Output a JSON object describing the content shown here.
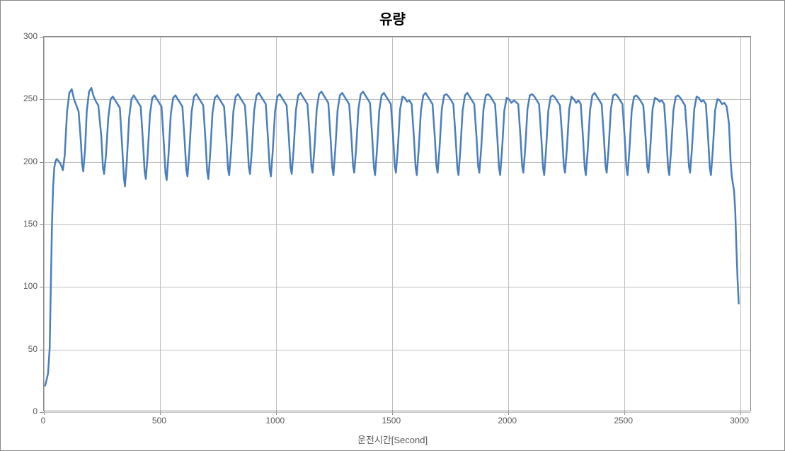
{
  "chart": {
    "type": "line",
    "title": "유량",
    "title_fontsize": 20,
    "title_fontweight": "bold",
    "title_color": "#000000",
    "xlabel": "운전시간[Second]",
    "label_fontsize": 13,
    "label_color": "#595959",
    "tick_fontsize": 12,
    "tick_color": "#595959",
    "xlim": [
      0,
      3050
    ],
    "ylim": [
      0,
      300
    ],
    "xtick_step": 500,
    "xticks": [
      0,
      500,
      1000,
      1500,
      2000,
      2500,
      3000
    ],
    "ytick_step": 50,
    "yticks": [
      0,
      50,
      100,
      150,
      200,
      250,
      300
    ],
    "background_color": "#ffffff",
    "grid_color": "#bfbfbf",
    "border_color": "#888888",
    "line_color": "#4a7ebb",
    "line_width": 2.5,
    "grid": true,
    "series": [
      {
        "x": 5,
        "y": 20
      },
      {
        "x": 8,
        "y": 22
      },
      {
        "x": 12,
        "y": 25
      },
      {
        "x": 18,
        "y": 30
      },
      {
        "x": 25,
        "y": 50
      },
      {
        "x": 30,
        "y": 100
      },
      {
        "x": 35,
        "y": 150
      },
      {
        "x": 40,
        "y": 180
      },
      {
        "x": 45,
        "y": 195
      },
      {
        "x": 50,
        "y": 200
      },
      {
        "x": 55,
        "y": 202
      },
      {
        "x": 65,
        "y": 200
      },
      {
        "x": 72,
        "y": 198
      },
      {
        "x": 78,
        "y": 195
      },
      {
        "x": 82,
        "y": 193
      },
      {
        "x": 90,
        "y": 205
      },
      {
        "x": 100,
        "y": 240
      },
      {
        "x": 110,
        "y": 255
      },
      {
        "x": 120,
        "y": 258
      },
      {
        "x": 130,
        "y": 250
      },
      {
        "x": 140,
        "y": 245
      },
      {
        "x": 150,
        "y": 240
      },
      {
        "x": 160,
        "y": 215
      },
      {
        "x": 165,
        "y": 198
      },
      {
        "x": 170,
        "y": 192
      },
      {
        "x": 178,
        "y": 210
      },
      {
        "x": 185,
        "y": 240
      },
      {
        "x": 195,
        "y": 256
      },
      {
        "x": 205,
        "y": 259
      },
      {
        "x": 215,
        "y": 252
      },
      {
        "x": 225,
        "y": 248
      },
      {
        "x": 235,
        "y": 245
      },
      {
        "x": 248,
        "y": 220
      },
      {
        "x": 255,
        "y": 195
      },
      {
        "x": 260,
        "y": 190
      },
      {
        "x": 268,
        "y": 205
      },
      {
        "x": 278,
        "y": 235
      },
      {
        "x": 288,
        "y": 250
      },
      {
        "x": 298,
        "y": 252
      },
      {
        "x": 308,
        "y": 249
      },
      {
        "x": 318,
        "y": 246
      },
      {
        "x": 328,
        "y": 243
      },
      {
        "x": 338,
        "y": 212
      },
      {
        "x": 345,
        "y": 188
      },
      {
        "x": 350,
        "y": 180
      },
      {
        "x": 358,
        "y": 200
      },
      {
        "x": 368,
        "y": 235
      },
      {
        "x": 378,
        "y": 250
      },
      {
        "x": 388,
        "y": 253
      },
      {
        "x": 398,
        "y": 250
      },
      {
        "x": 408,
        "y": 247
      },
      {
        "x": 418,
        "y": 244
      },
      {
        "x": 428,
        "y": 215
      },
      {
        "x": 435,
        "y": 192
      },
      {
        "x": 440,
        "y": 186
      },
      {
        "x": 448,
        "y": 205
      },
      {
        "x": 458,
        "y": 238
      },
      {
        "x": 468,
        "y": 251
      },
      {
        "x": 478,
        "y": 253
      },
      {
        "x": 488,
        "y": 250
      },
      {
        "x": 498,
        "y": 247
      },
      {
        "x": 508,
        "y": 244
      },
      {
        "x": 518,
        "y": 214
      },
      {
        "x": 525,
        "y": 191
      },
      {
        "x": 530,
        "y": 185
      },
      {
        "x": 538,
        "y": 205
      },
      {
        "x": 548,
        "y": 238
      },
      {
        "x": 558,
        "y": 251
      },
      {
        "x": 568,
        "y": 253
      },
      {
        "x": 578,
        "y": 250
      },
      {
        "x": 588,
        "y": 247
      },
      {
        "x": 598,
        "y": 244
      },
      {
        "x": 608,
        "y": 216
      },
      {
        "x": 615,
        "y": 193
      },
      {
        "x": 620,
        "y": 188
      },
      {
        "x": 628,
        "y": 208
      },
      {
        "x": 638,
        "y": 240
      },
      {
        "x": 648,
        "y": 252
      },
      {
        "x": 658,
        "y": 254
      },
      {
        "x": 668,
        "y": 251
      },
      {
        "x": 678,
        "y": 248
      },
      {
        "x": 688,
        "y": 245
      },
      {
        "x": 698,
        "y": 216
      },
      {
        "x": 705,
        "y": 192
      },
      {
        "x": 710,
        "y": 186
      },
      {
        "x": 718,
        "y": 206
      },
      {
        "x": 728,
        "y": 239
      },
      {
        "x": 738,
        "y": 251
      },
      {
        "x": 748,
        "y": 253
      },
      {
        "x": 758,
        "y": 250
      },
      {
        "x": 768,
        "y": 247
      },
      {
        "x": 778,
        "y": 244
      },
      {
        "x": 788,
        "y": 217
      },
      {
        "x": 795,
        "y": 194
      },
      {
        "x": 800,
        "y": 189
      },
      {
        "x": 808,
        "y": 208
      },
      {
        "x": 818,
        "y": 240
      },
      {
        "x": 828,
        "y": 252
      },
      {
        "x": 838,
        "y": 254
      },
      {
        "x": 848,
        "y": 251
      },
      {
        "x": 858,
        "y": 248
      },
      {
        "x": 868,
        "y": 245
      },
      {
        "x": 878,
        "y": 218
      },
      {
        "x": 885,
        "y": 195
      },
      {
        "x": 890,
        "y": 190
      },
      {
        "x": 898,
        "y": 209
      },
      {
        "x": 908,
        "y": 241
      },
      {
        "x": 918,
        "y": 253
      },
      {
        "x": 928,
        "y": 255
      },
      {
        "x": 938,
        "y": 252
      },
      {
        "x": 948,
        "y": 249
      },
      {
        "x": 958,
        "y": 246
      },
      {
        "x": 968,
        "y": 217
      },
      {
        "x": 975,
        "y": 194
      },
      {
        "x": 980,
        "y": 188
      },
      {
        "x": 988,
        "y": 208
      },
      {
        "x": 998,
        "y": 240
      },
      {
        "x": 1008,
        "y": 252
      },
      {
        "x": 1018,
        "y": 254
      },
      {
        "x": 1028,
        "y": 251
      },
      {
        "x": 1038,
        "y": 248
      },
      {
        "x": 1048,
        "y": 245
      },
      {
        "x": 1058,
        "y": 218
      },
      {
        "x": 1065,
        "y": 195
      },
      {
        "x": 1070,
        "y": 190
      },
      {
        "x": 1078,
        "y": 209
      },
      {
        "x": 1088,
        "y": 241
      },
      {
        "x": 1098,
        "y": 253
      },
      {
        "x": 1108,
        "y": 255
      },
      {
        "x": 1118,
        "y": 252
      },
      {
        "x": 1128,
        "y": 249
      },
      {
        "x": 1138,
        "y": 246
      },
      {
        "x": 1148,
        "y": 219
      },
      {
        "x": 1155,
        "y": 196
      },
      {
        "x": 1160,
        "y": 191
      },
      {
        "x": 1168,
        "y": 210
      },
      {
        "x": 1178,
        "y": 242
      },
      {
        "x": 1188,
        "y": 254
      },
      {
        "x": 1198,
        "y": 256
      },
      {
        "x": 1208,
        "y": 253
      },
      {
        "x": 1218,
        "y": 250
      },
      {
        "x": 1228,
        "y": 247
      },
      {
        "x": 1238,
        "y": 218
      },
      {
        "x": 1245,
        "y": 195
      },
      {
        "x": 1250,
        "y": 189
      },
      {
        "x": 1258,
        "y": 209
      },
      {
        "x": 1268,
        "y": 241
      },
      {
        "x": 1278,
        "y": 253
      },
      {
        "x": 1288,
        "y": 255
      },
      {
        "x": 1298,
        "y": 252
      },
      {
        "x": 1308,
        "y": 249
      },
      {
        "x": 1318,
        "y": 246
      },
      {
        "x": 1328,
        "y": 219
      },
      {
        "x": 1335,
        "y": 196
      },
      {
        "x": 1340,
        "y": 191
      },
      {
        "x": 1348,
        "y": 210
      },
      {
        "x": 1358,
        "y": 242
      },
      {
        "x": 1368,
        "y": 254
      },
      {
        "x": 1378,
        "y": 256
      },
      {
        "x": 1388,
        "y": 253
      },
      {
        "x": 1398,
        "y": 250
      },
      {
        "x": 1408,
        "y": 247
      },
      {
        "x": 1418,
        "y": 218
      },
      {
        "x": 1425,
        "y": 195
      },
      {
        "x": 1430,
        "y": 189
      },
      {
        "x": 1438,
        "y": 209
      },
      {
        "x": 1448,
        "y": 241
      },
      {
        "x": 1458,
        "y": 253
      },
      {
        "x": 1468,
        "y": 255
      },
      {
        "x": 1478,
        "y": 252
      },
      {
        "x": 1488,
        "y": 249
      },
      {
        "x": 1498,
        "y": 246
      },
      {
        "x": 1508,
        "y": 219
      },
      {
        "x": 1515,
        "y": 196
      },
      {
        "x": 1520,
        "y": 191
      },
      {
        "x": 1528,
        "y": 210
      },
      {
        "x": 1538,
        "y": 242
      },
      {
        "x": 1548,
        "y": 252
      },
      {
        "x": 1558,
        "y": 251
      },
      {
        "x": 1568,
        "y": 248
      },
      {
        "x": 1578,
        "y": 249
      },
      {
        "x": 1588,
        "y": 246
      },
      {
        "x": 1598,
        "y": 218
      },
      {
        "x": 1605,
        "y": 195
      },
      {
        "x": 1610,
        "y": 189
      },
      {
        "x": 1618,
        "y": 209
      },
      {
        "x": 1628,
        "y": 241
      },
      {
        "x": 1638,
        "y": 253
      },
      {
        "x": 1648,
        "y": 255
      },
      {
        "x": 1658,
        "y": 252
      },
      {
        "x": 1668,
        "y": 249
      },
      {
        "x": 1678,
        "y": 246
      },
      {
        "x": 1688,
        "y": 219
      },
      {
        "x": 1695,
        "y": 196
      },
      {
        "x": 1700,
        "y": 191
      },
      {
        "x": 1708,
        "y": 210
      },
      {
        "x": 1718,
        "y": 242
      },
      {
        "x": 1728,
        "y": 253
      },
      {
        "x": 1738,
        "y": 254
      },
      {
        "x": 1748,
        "y": 252
      },
      {
        "x": 1758,
        "y": 249
      },
      {
        "x": 1768,
        "y": 246
      },
      {
        "x": 1778,
        "y": 218
      },
      {
        "x": 1785,
        "y": 195
      },
      {
        "x": 1790,
        "y": 189
      },
      {
        "x": 1798,
        "y": 209
      },
      {
        "x": 1808,
        "y": 241
      },
      {
        "x": 1818,
        "y": 253
      },
      {
        "x": 1828,
        "y": 255
      },
      {
        "x": 1838,
        "y": 252
      },
      {
        "x": 1848,
        "y": 249
      },
      {
        "x": 1858,
        "y": 246
      },
      {
        "x": 1868,
        "y": 219
      },
      {
        "x": 1875,
        "y": 196
      },
      {
        "x": 1880,
        "y": 191
      },
      {
        "x": 1888,
        "y": 210
      },
      {
        "x": 1898,
        "y": 242
      },
      {
        "x": 1908,
        "y": 253
      },
      {
        "x": 1918,
        "y": 254
      },
      {
        "x": 1928,
        "y": 252
      },
      {
        "x": 1938,
        "y": 249
      },
      {
        "x": 1948,
        "y": 246
      },
      {
        "x": 1958,
        "y": 218
      },
      {
        "x": 1965,
        "y": 195
      },
      {
        "x": 1970,
        "y": 189
      },
      {
        "x": 1978,
        "y": 209
      },
      {
        "x": 1988,
        "y": 241
      },
      {
        "x": 1998,
        "y": 251
      },
      {
        "x": 2008,
        "y": 250
      },
      {
        "x": 2018,
        "y": 247
      },
      {
        "x": 2030,
        "y": 249
      },
      {
        "x": 2048,
        "y": 246
      },
      {
        "x": 2058,
        "y": 219
      },
      {
        "x": 2065,
        "y": 196
      },
      {
        "x": 2070,
        "y": 191
      },
      {
        "x": 2078,
        "y": 210
      },
      {
        "x": 2088,
        "y": 242
      },
      {
        "x": 2098,
        "y": 253
      },
      {
        "x": 2108,
        "y": 254
      },
      {
        "x": 2118,
        "y": 252
      },
      {
        "x": 2128,
        "y": 249
      },
      {
        "x": 2138,
        "y": 246
      },
      {
        "x": 2148,
        "y": 218
      },
      {
        "x": 2155,
        "y": 195
      },
      {
        "x": 2160,
        "y": 189
      },
      {
        "x": 2168,
        "y": 209
      },
      {
        "x": 2178,
        "y": 241
      },
      {
        "x": 2188,
        "y": 252
      },
      {
        "x": 2198,
        "y": 253
      },
      {
        "x": 2208,
        "y": 251
      },
      {
        "x": 2218,
        "y": 248
      },
      {
        "x": 2228,
        "y": 245
      },
      {
        "x": 2238,
        "y": 219
      },
      {
        "x": 2245,
        "y": 196
      },
      {
        "x": 2250,
        "y": 191
      },
      {
        "x": 2258,
        "y": 210
      },
      {
        "x": 2268,
        "y": 242
      },
      {
        "x": 2278,
        "y": 252
      },
      {
        "x": 2288,
        "y": 250
      },
      {
        "x": 2298,
        "y": 247
      },
      {
        "x": 2308,
        "y": 249
      },
      {
        "x": 2318,
        "y": 246
      },
      {
        "x": 2328,
        "y": 218
      },
      {
        "x": 2335,
        "y": 195
      },
      {
        "x": 2340,
        "y": 189
      },
      {
        "x": 2348,
        "y": 209
      },
      {
        "x": 2358,
        "y": 241
      },
      {
        "x": 2368,
        "y": 253
      },
      {
        "x": 2378,
        "y": 255
      },
      {
        "x": 2388,
        "y": 252
      },
      {
        "x": 2398,
        "y": 249
      },
      {
        "x": 2408,
        "y": 246
      },
      {
        "x": 2418,
        "y": 219
      },
      {
        "x": 2425,
        "y": 196
      },
      {
        "x": 2430,
        "y": 191
      },
      {
        "x": 2438,
        "y": 210
      },
      {
        "x": 2448,
        "y": 242
      },
      {
        "x": 2458,
        "y": 253
      },
      {
        "x": 2468,
        "y": 254
      },
      {
        "x": 2478,
        "y": 252
      },
      {
        "x": 2488,
        "y": 249
      },
      {
        "x": 2498,
        "y": 246
      },
      {
        "x": 2508,
        "y": 218
      },
      {
        "x": 2515,
        "y": 195
      },
      {
        "x": 2520,
        "y": 189
      },
      {
        "x": 2528,
        "y": 209
      },
      {
        "x": 2538,
        "y": 241
      },
      {
        "x": 2548,
        "y": 252
      },
      {
        "x": 2558,
        "y": 253
      },
      {
        "x": 2568,
        "y": 251
      },
      {
        "x": 2578,
        "y": 248
      },
      {
        "x": 2588,
        "y": 245
      },
      {
        "x": 2598,
        "y": 219
      },
      {
        "x": 2605,
        "y": 196
      },
      {
        "x": 2610,
        "y": 191
      },
      {
        "x": 2618,
        "y": 210
      },
      {
        "x": 2628,
        "y": 242
      },
      {
        "x": 2638,
        "y": 251
      },
      {
        "x": 2648,
        "y": 250
      },
      {
        "x": 2658,
        "y": 248
      },
      {
        "x": 2668,
        "y": 249
      },
      {
        "x": 2678,
        "y": 246
      },
      {
        "x": 2688,
        "y": 218
      },
      {
        "x": 2695,
        "y": 195
      },
      {
        "x": 2700,
        "y": 189
      },
      {
        "x": 2708,
        "y": 209
      },
      {
        "x": 2718,
        "y": 241
      },
      {
        "x": 2728,
        "y": 252
      },
      {
        "x": 2738,
        "y": 253
      },
      {
        "x": 2748,
        "y": 251
      },
      {
        "x": 2758,
        "y": 248
      },
      {
        "x": 2768,
        "y": 245
      },
      {
        "x": 2778,
        "y": 219
      },
      {
        "x": 2785,
        "y": 196
      },
      {
        "x": 2790,
        "y": 191
      },
      {
        "x": 2798,
        "y": 210
      },
      {
        "x": 2808,
        "y": 242
      },
      {
        "x": 2818,
        "y": 252
      },
      {
        "x": 2828,
        "y": 251
      },
      {
        "x": 2838,
        "y": 248
      },
      {
        "x": 2848,
        "y": 249
      },
      {
        "x": 2858,
        "y": 246
      },
      {
        "x": 2868,
        "y": 218
      },
      {
        "x": 2875,
        "y": 195
      },
      {
        "x": 2880,
        "y": 189
      },
      {
        "x": 2888,
        "y": 209
      },
      {
        "x": 2898,
        "y": 241
      },
      {
        "x": 2908,
        "y": 250
      },
      {
        "x": 2918,
        "y": 249
      },
      {
        "x": 2928,
        "y": 246
      },
      {
        "x": 2938,
        "y": 247
      },
      {
        "x": 2948,
        "y": 244
      },
      {
        "x": 2958,
        "y": 230
      },
      {
        "x": 2965,
        "y": 200
      },
      {
        "x": 2970,
        "y": 188
      },
      {
        "x": 2975,
        "y": 182
      },
      {
        "x": 2980,
        "y": 176
      },
      {
        "x": 2985,
        "y": 160
      },
      {
        "x": 2990,
        "y": 130
      },
      {
        "x": 2995,
        "y": 105
      },
      {
        "x": 3000,
        "y": 86
      }
    ]
  }
}
